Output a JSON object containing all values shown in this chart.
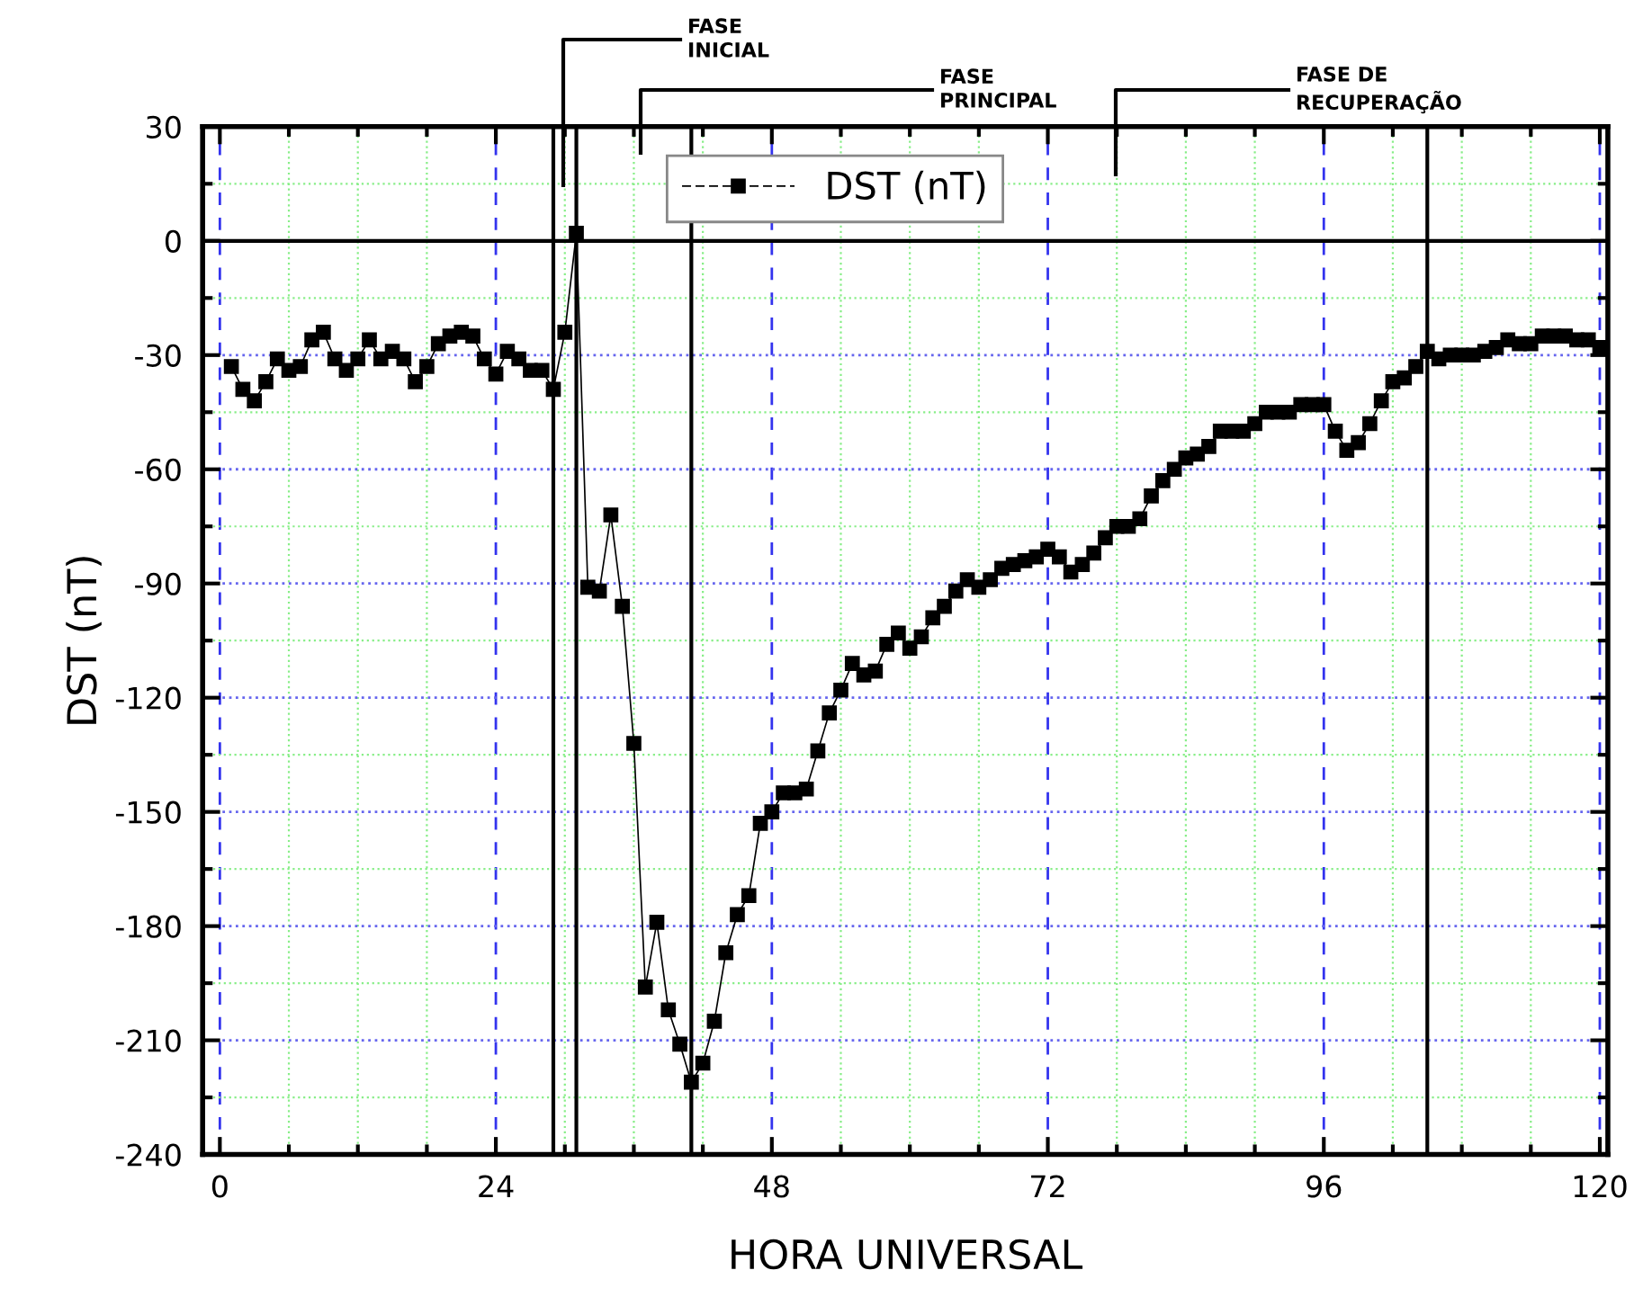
{
  "chart_data": {
    "type": "line",
    "xlabel": "HORA UNIVERSAL",
    "ylabel": "DST (nT)",
    "xlim": [
      -1.5,
      120.7
    ],
    "ylim": [
      -240,
      30
    ],
    "xticks": [
      0,
      {
        "value": 6,
        "label": null
      },
      {
        "value": 12,
        "label": null
      },
      {
        "value": 18,
        "label": null
      },
      24,
      {
        "value": 30,
        "label": null
      },
      {
        "value": 36,
        "label": null
      },
      {
        "value": 42,
        "label": null
      },
      48,
      {
        "value": 54,
        "label": null
      },
      {
        "value": 60,
        "label": null
      },
      {
        "value": 66,
        "label": null
      },
      72,
      {
        "value": 78,
        "label": null
      },
      {
        "value": 84,
        "label": null
      },
      {
        "value": 90,
        "label": null
      },
      96,
      {
        "value": 102,
        "label": null
      },
      {
        "value": 108,
        "label": null
      },
      {
        "value": 114,
        "label": null
      },
      120
    ],
    "yticks": [
      -240,
      {
        "value": -225,
        "label": null
      },
      -210,
      {
        "value": -195,
        "label": null
      },
      -180,
      {
        "value": -165,
        "label": null
      },
      -150,
      {
        "value": -135,
        "label": null
      },
      -120,
      {
        "value": -105,
        "label": null
      },
      -90,
      {
        "value": -75,
        "label": null
      },
      -60,
      {
        "value": -45,
        "label": null
      },
      -30,
      {
        "value": -15,
        "label": null
      },
      0,
      {
        "value": 15,
        "label": null
      },
      30
    ],
    "grid": true,
    "legend": "top",
    "marker": "square",
    "line_style": "solid",
    "x": [
      1,
      2,
      3,
      4,
      5,
      6,
      7,
      8,
      9,
      10,
      11,
      12,
      13,
      14,
      15,
      16,
      17,
      18,
      19,
      20,
      21,
      22,
      23,
      24,
      25,
      26,
      27,
      28,
      29,
      30,
      31,
      32,
      33,
      34,
      35,
      36,
      37,
      38,
      39,
      40,
      41,
      42,
      43,
      44,
      45,
      46,
      47,
      48,
      49,
      50,
      51,
      52,
      53,
      54,
      55,
      56,
      57,
      58,
      59,
      60,
      61,
      62,
      63,
      64,
      65,
      66,
      67,
      68,
      69,
      70,
      71,
      72,
      73,
      74,
      75,
      76,
      77,
      78,
      79,
      80,
      81,
      82,
      83,
      84,
      85,
      86,
      87,
      88,
      89,
      90,
      91,
      92,
      93,
      94,
      95,
      96,
      97,
      98,
      99,
      100,
      101,
      102,
      103,
      104,
      105,
      106,
      107,
      108,
      109,
      110,
      111,
      112,
      113,
      114,
      115,
      116,
      117,
      118,
      119,
      120
    ],
    "series": [
      {
        "name": "DST (nT)",
        "color": "#000000",
        "values": [
          -33,
          -39,
          -42,
          -37,
          -31,
          -34,
          -33,
          -26,
          -24,
          -31,
          -34,
          -31,
          -26,
          -31,
          -29,
          -31,
          -37,
          -33,
          -27,
          -25,
          -24,
          -25,
          -31,
          -35,
          -29,
          -31,
          -34,
          -34,
          -39,
          -24,
          2,
          -91,
          -92,
          -72,
          -96,
          -132,
          -196,
          -179,
          -202,
          -211,
          -221,
          -216,
          -205,
          -187,
          -177,
          -172,
          -153,
          -150,
          -145,
          -145,
          -144,
          -134,
          -124,
          -118,
          -111,
          -114,
          -113,
          -106,
          -103,
          -107,
          -104,
          -99,
          -96,
          -92,
          -89,
          -91,
          -89,
          -86,
          -85,
          -84,
          -83,
          -81,
          -83,
          -87,
          -85,
          -82,
          -78,
          -75,
          -75,
          -73,
          -67,
          -63,
          -60,
          -57,
          -56,
          -54,
          -50,
          -50,
          -50,
          -48,
          -45,
          -45,
          -45,
          -43,
          -43,
          -43,
          -50,
          -55,
          -53,
          -48,
          -42,
          -37,
          -36,
          -33,
          -29,
          -31,
          -30,
          -30,
          -30,
          -29,
          -28,
          -26,
          -27,
          -27,
          -25,
          -25,
          -25,
          -26,
          -26,
          -28
        ]
      }
    ],
    "ref_lines": [
      {
        "axis": "y",
        "value": 0,
        "color": "#000000"
      },
      {
        "axis": "x",
        "value": 29,
        "color": "#000000"
      },
      {
        "axis": "x",
        "value": 31,
        "color": "#000000"
      },
      {
        "axis": "x",
        "value": 41,
        "color": "#000000"
      },
      {
        "axis": "x",
        "value": 105,
        "color": "#000000"
      }
    ],
    "annotations": [
      "FASE\nINICIAL",
      "FASE\nPRINCIPAL",
      "FASE DE\nRECUPERAÇÃO"
    ]
  }
}
